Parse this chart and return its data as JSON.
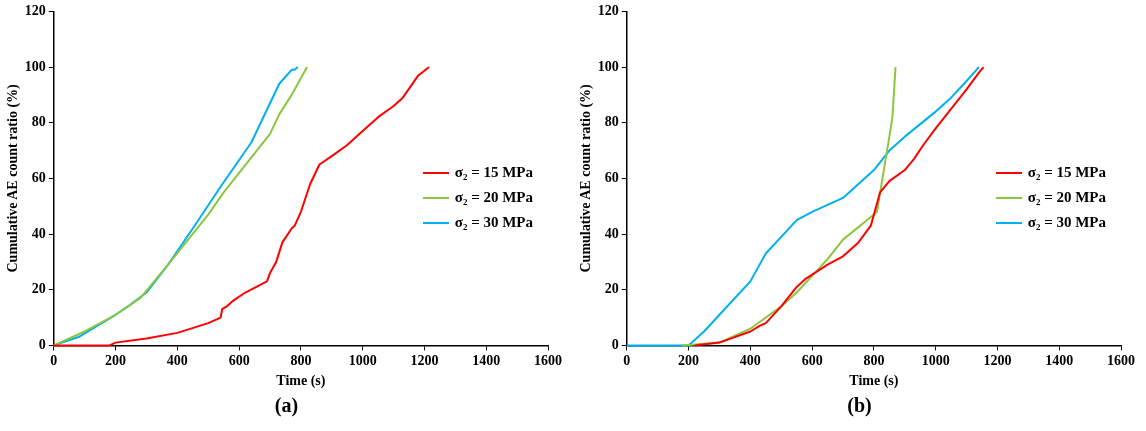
{
  "chart_data": [
    {
      "type": "line",
      "xlabel": "Time (s)",
      "ylabel": "Cumulative AE count ratio (%)",
      "xlim": [
        0,
        1600
      ],
      "xticks": [
        0,
        200,
        400,
        600,
        800,
        1000,
        1200,
        1400,
        1600
      ],
      "ylim": [
        0,
        120
      ],
      "yticks": [
        0,
        20,
        40,
        60,
        80,
        100,
        120
      ],
      "grid": false,
      "legend": "right",
      "marker": "none",
      "line_style": "solid",
      "annotations": [
        "(a)"
      ],
      "series": [
        {
          "name": "σ₂ = 15 MPa",
          "color": "#ff0000",
          "x": [
            0,
            180,
            200,
            300,
            400,
            500,
            540,
            545,
            560,
            580,
            620,
            690,
            700,
            720,
            740,
            770,
            780,
            800,
            830,
            860,
            900,
            950,
            1000,
            1050,
            1100,
            1130,
            1180,
            1215
          ],
          "values": [
            0,
            0,
            1,
            2.5,
            4.5,
            8,
            10,
            13,
            14,
            16,
            19,
            23,
            26,
            30,
            37,
            42,
            43,
            48,
            58,
            65,
            68,
            72,
            77,
            82,
            86,
            89,
            97,
            100
          ]
        },
        {
          "name": "σ₂ = 20 MPa",
          "color": "#8cc63f",
          "x": [
            0,
            100,
            200,
            280,
            370,
            500,
            550,
            700,
            730,
            770,
            820
          ],
          "values": [
            0,
            5,
            11,
            17,
            29,
            47,
            55,
            76,
            83,
            90,
            100
          ]
        },
        {
          "name": "σ₂ = 30 MPa",
          "color": "#00b0f0",
          "x": [
            0,
            80,
            200,
            240,
            300,
            370,
            450,
            540,
            640,
            730,
            770,
            780,
            790
          ],
          "values": [
            0,
            3,
            11,
            14,
            19,
            29,
            42,
            57,
            73,
            94,
            99,
            99,
            100
          ]
        }
      ]
    },
    {
      "type": "line",
      "xlabel": "Time (s)",
      "ylabel": "Cumulative AE count ratio (%)",
      "xlim": [
        0,
        1600
      ],
      "xticks": [
        0,
        200,
        400,
        600,
        800,
        1000,
        1200,
        1400,
        1600
      ],
      "ylim": [
        0,
        120
      ],
      "yticks": [
        0,
        20,
        40,
        60,
        80,
        100,
        120
      ],
      "grid": false,
      "legend": "right",
      "marker": "none",
      "line_style": "solid",
      "annotations": [
        "(b)"
      ],
      "series": [
        {
          "name": "σ₂ = 15 MPa",
          "color": "#ff0000",
          "x": [
            220,
            300,
            400,
            430,
            450,
            500,
            550,
            580,
            650,
            700,
            750,
            790,
            820,
            850,
            900,
            930,
            960,
            1000,
            1050,
            1100,
            1140,
            1155
          ],
          "values": [
            0,
            1,
            5,
            7,
            8,
            14,
            21,
            24,
            29,
            32,
            37,
            43,
            55,
            59,
            63,
            67,
            72,
            78,
            85,
            92,
            98,
            100
          ]
        },
        {
          "name": "σ₂ = 20 MPa",
          "color": "#8cc63f",
          "x": [
            180,
            300,
            400,
            500,
            550,
            600,
            650,
            700,
            800,
            810,
            850,
            860,
            870
          ],
          "values": [
            0,
            1,
            6,
            14,
            19,
            25,
            31,
            38,
            47,
            48,
            75,
            82,
            100
          ]
        },
        {
          "name": "σ₂ = 30 MPa",
          "color": "#00b0f0",
          "x": [
            0,
            200,
            250,
            300,
            400,
            450,
            500,
            550,
            600,
            700,
            750,
            800,
            850,
            900,
            1000,
            1050,
            1100,
            1140
          ],
          "values": [
            0,
            0,
            5,
            11,
            23,
            33,
            39,
            45,
            48,
            53,
            58,
            63,
            70,
            75,
            84,
            89,
            95,
            100
          ]
        }
      ]
    }
  ]
}
